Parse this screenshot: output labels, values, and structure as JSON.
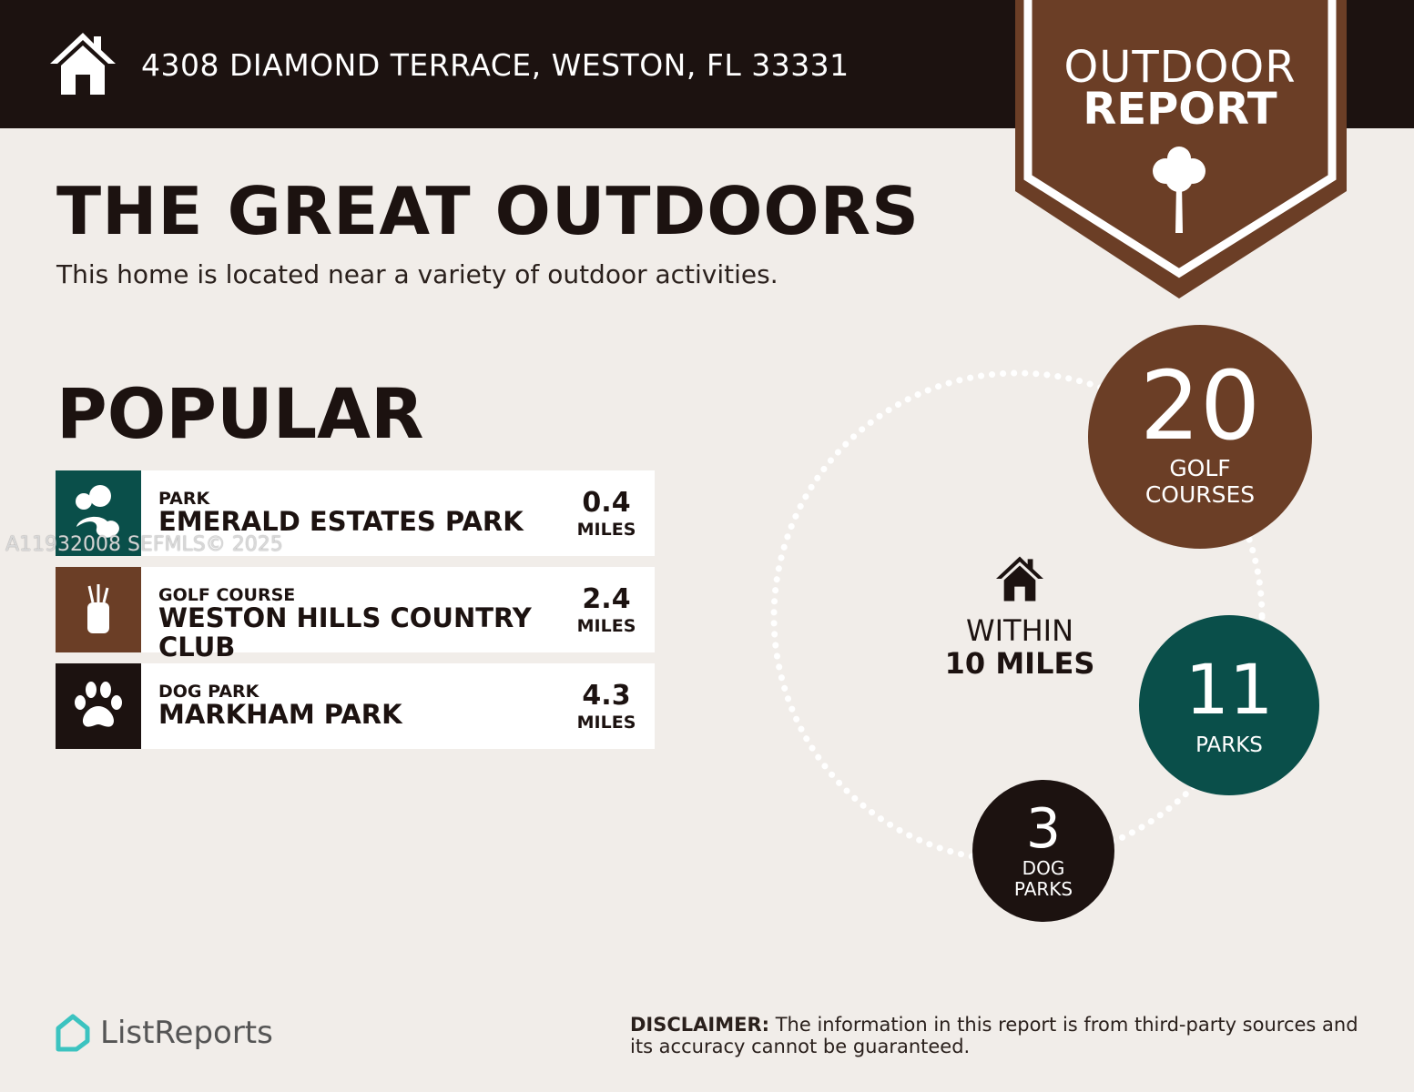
{
  "header": {
    "address": "4308 DIAMOND TERRACE, WESTON, FL 33331",
    "icon": "home-icon"
  },
  "badge": {
    "line1": "OUTDOOR",
    "line2": "REPORT",
    "icon": "tree-icon"
  },
  "title": "THE GREAT OUTDOORS",
  "subtitle": "This home is located near a variety of outdoor activities.",
  "popular": {
    "heading": "POPULAR",
    "items": [
      {
        "category": "PARK",
        "name": "EMERALD ESTATES PARK",
        "distance": "0.4",
        "unit": "MILES",
        "icon": "park-icon",
        "color": "#0a4f4a"
      },
      {
        "category": "GOLF COURSE",
        "name": "WESTON HILLS COUNTRY CLUB",
        "distance": "2.4",
        "unit": "MILES",
        "icon": "golf-bag-icon",
        "color": "#6b3e26"
      },
      {
        "category": "DOG PARK",
        "name": "MARKHAM PARK",
        "distance": "4.3",
        "unit": "MILES",
        "icon": "paw-icon",
        "color": "#1c1210"
      }
    ]
  },
  "watermark": "A11932008  SEFMLS© 2025",
  "summary": {
    "within_label": "WITHIN",
    "radius": "10 MILES",
    "golf": {
      "count": "20",
      "label1": "GOLF",
      "label2": "COURSES",
      "color": "#6b3e26"
    },
    "parks": {
      "count": "11",
      "label1": "PARKS",
      "color": "#0a4f4a"
    },
    "dog": {
      "count": "3",
      "label1": "DOG",
      "label2": "PARKS",
      "color": "#1c1210"
    }
  },
  "footer": {
    "logo": "ListReports",
    "disclaimer_label": "DISCLAIMER:",
    "disclaimer": " The information in this report is from third-party sources and its accuracy cannot be guaranteed."
  }
}
